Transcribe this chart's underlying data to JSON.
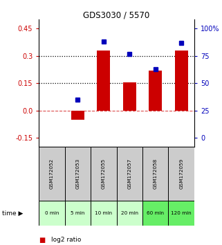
{
  "title": "GDS3030 / 5570",
  "samples": [
    "GSM172052",
    "GSM172053",
    "GSM172055",
    "GSM172057",
    "GSM172058",
    "GSM172059"
  ],
  "time_labels": [
    "0 min",
    "5 min",
    "10 min",
    "20 min",
    "60 min",
    "120 min"
  ],
  "log2_ratio": [
    0.0,
    -0.05,
    0.33,
    0.155,
    0.22,
    0.33
  ],
  "percentile_pct": [
    null,
    35,
    88,
    77,
    63,
    87
  ],
  "left_ylim": [
    -0.2,
    0.5
  ],
  "left_yticks": [
    -0.15,
    0.0,
    0.15,
    0.3,
    0.45
  ],
  "right_ylim": [
    -6.67,
    100.0
  ],
  "right_yticks_pct": [
    0,
    25,
    50,
    75,
    100
  ],
  "right_ytick_labels": [
    "0",
    "25",
    "50",
    "75",
    "100%"
  ],
  "hlines_dotted": [
    0.15,
    0.3
  ],
  "hline_dashed": 0.0,
  "bar_color": "#cc0000",
  "dot_color": "#0000bb",
  "bg_color": "#ffffff",
  "sample_box_color": "#cccccc",
  "time_colors": [
    "#ccffcc",
    "#ccffcc",
    "#ccffcc",
    "#ccffcc",
    "#66ee66",
    "#66ee66"
  ],
  "left_tick_color": "#cc0000",
  "right_tick_color": "#0000bb",
  "bar_width": 0.5
}
